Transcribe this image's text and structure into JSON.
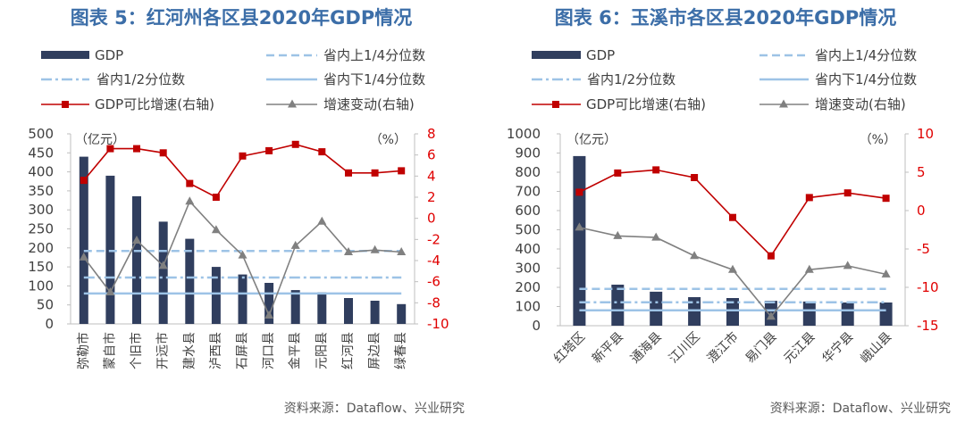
{
  "chart_data": [
    {
      "type": "bar",
      "title": "图表 5：红河州各区县2020年GDP情况",
      "categories": [
        "弥勒市",
        "蒙自市",
        "个旧市",
        "开远市",
        "建水县",
        "泸西县",
        "石屏县",
        "河口县",
        "金平县",
        "元阳县",
        "红河县",
        "屏边县",
        "绿春县"
      ],
      "ylabel": "（亿元）",
      "y2label": "（%）",
      "ylim": [
        0,
        500
      ],
      "yticks": [
        0,
        50,
        100,
        150,
        200,
        250,
        300,
        350,
        400,
        450,
        500
      ],
      "y2lim": [
        -10,
        8
      ],
      "y2ticks": [
        -10,
        -8,
        -6,
        -4,
        -2,
        0,
        2,
        4,
        6,
        8
      ],
      "y2tick_color": "#e00000",
      "legend": "top",
      "grid": false,
      "series": [
        {
          "name": "GDP",
          "type": "bar",
          "axis": "left",
          "color": "#303e5e",
          "values": [
            440,
            390,
            336,
            269,
            224,
            150,
            130,
            108,
            89,
            83,
            68,
            61,
            52
          ]
        },
        {
          "name": "省内上1/4分位数",
          "type": "hline",
          "axis": "left",
          "style": "dashed",
          "color": "#9dc3e6",
          "value": 192
        },
        {
          "name": "省内1/2分位数",
          "type": "hline",
          "axis": "left",
          "style": "dash-dot",
          "color": "#9dc3e6",
          "value": 122
        },
        {
          "name": "省内下1/4分位数",
          "type": "hline",
          "axis": "left",
          "style": "solid",
          "color": "#9dc3e6",
          "value": 80
        },
        {
          "name": "GDP可比增速(右轴)",
          "type": "line",
          "axis": "right",
          "marker": "square",
          "color": "#c00000",
          "values": [
            3.6,
            6.6,
            6.6,
            6.2,
            3.3,
            2.0,
            5.9,
            6.4,
            7.0,
            6.3,
            4.3,
            4.3,
            4.5
          ]
        },
        {
          "name": "增速变动(右轴)",
          "type": "line",
          "axis": "right",
          "marker": "triangle",
          "color": "#808080",
          "values": [
            -3.7,
            -7.0,
            -2.1,
            -4.5,
            1.6,
            -1.1,
            -3.5,
            -9.2,
            -2.6,
            -0.3,
            -3.2,
            -3.0,
            -3.2
          ]
        }
      ],
      "source": "资料来源：Dataflow、兴业研究"
    },
    {
      "type": "bar",
      "title": "图表 6：玉溪市各区县2020年GDP情况",
      "categories": [
        "红塔区",
        "新平县",
        "通海县",
        "江川区",
        "澄江市",
        "易门县",
        "元江县",
        "华宁县",
        "峨山县"
      ],
      "ylabel": "（亿元）",
      "y2label": "（%）",
      "ylim": [
        0,
        1000
      ],
      "yticks": [
        0,
        100,
        200,
        300,
        400,
        500,
        600,
        700,
        800,
        900,
        1000
      ],
      "y2lim": [
        -15,
        10
      ],
      "y2ticks": [
        -15,
        -10,
        -5,
        0,
        5,
        10
      ],
      "y2tick_color": "#e00000",
      "legend": "top",
      "grid": false,
      "series": [
        {
          "name": "GDP",
          "type": "bar",
          "axis": "left",
          "color": "#303e5e",
          "values": [
            884,
            214,
            177,
            149,
            144,
            130,
            126,
            121,
            121
          ]
        },
        {
          "name": "省内上1/4分位数",
          "type": "hline",
          "axis": "left",
          "style": "dashed",
          "color": "#9dc3e6",
          "value": 192
        },
        {
          "name": "省内1/2分位数",
          "type": "hline",
          "axis": "left",
          "style": "dash-dot",
          "color": "#9dc3e6",
          "value": 122
        },
        {
          "name": "省内下1/4分位数",
          "type": "hline",
          "axis": "left",
          "style": "solid",
          "color": "#9dc3e6",
          "value": 80
        },
        {
          "name": "GDP可比增速(右轴)",
          "type": "line",
          "axis": "right",
          "marker": "square",
          "color": "#c00000",
          "values": [
            2.4,
            4.9,
            5.3,
            4.3,
            -0.9,
            -5.9,
            1.7,
            2.3,
            1.6
          ]
        },
        {
          "name": "增速变动(右轴)",
          "type": "line",
          "axis": "right",
          "marker": "triangle",
          "color": "#808080",
          "values": [
            -2.2,
            -3.3,
            -3.5,
            -5.9,
            -7.7,
            -13.8,
            -7.7,
            -7.2,
            -8.3
          ]
        }
      ],
      "source": "资料来源：Dataflow、兴业研究"
    }
  ]
}
